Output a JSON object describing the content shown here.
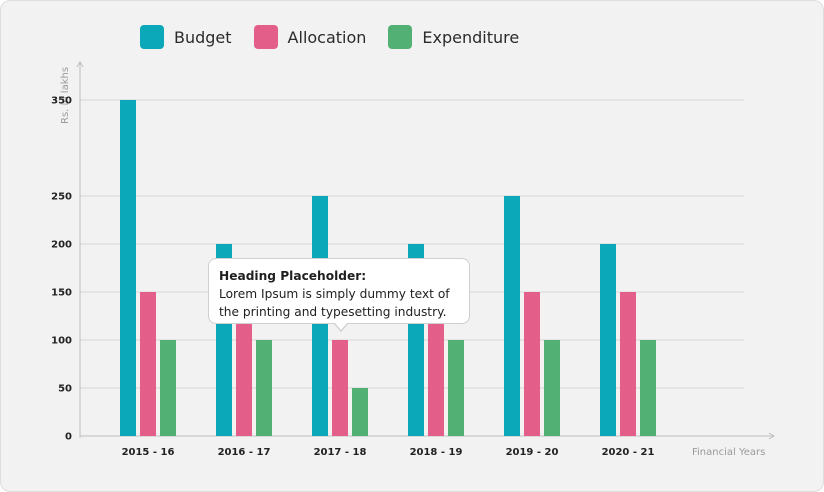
{
  "legend": [
    {
      "label": "Budget",
      "color": "#0aa8b8"
    },
    {
      "label": "Allocation",
      "color": "#e45e8a"
    },
    {
      "label": "Expenditure",
      "color": "#53b075"
    }
  ],
  "tooltip": {
    "heading": "Heading Placeholder:",
    "line1": "Lorem Ipsum is simply dummy text of",
    "line2": "the printing and typesetting industry."
  },
  "chart_data": {
    "type": "bar",
    "categories": [
      "2015 - 16",
      "2016 - 17",
      "2017 - 18",
      "2018 - 19",
      "2019 - 20",
      "2020 - 21"
    ],
    "series": [
      {
        "name": "Budget",
        "values": [
          350,
          200,
          250,
          200,
          250,
          200
        ]
      },
      {
        "name": "Allocation",
        "values": [
          150,
          150,
          100,
          150,
          150,
          150
        ]
      },
      {
        "name": "Expenditure",
        "values": [
          100,
          100,
          50,
          100,
          100,
          100
        ]
      }
    ],
    "ylabel": "Rs. in lakhs",
    "xlabel": "Financial Years",
    "yticks": [
      0,
      50,
      100,
      150,
      200,
      250,
      350
    ],
    "grid": true,
    "legend_position": "top-left"
  }
}
